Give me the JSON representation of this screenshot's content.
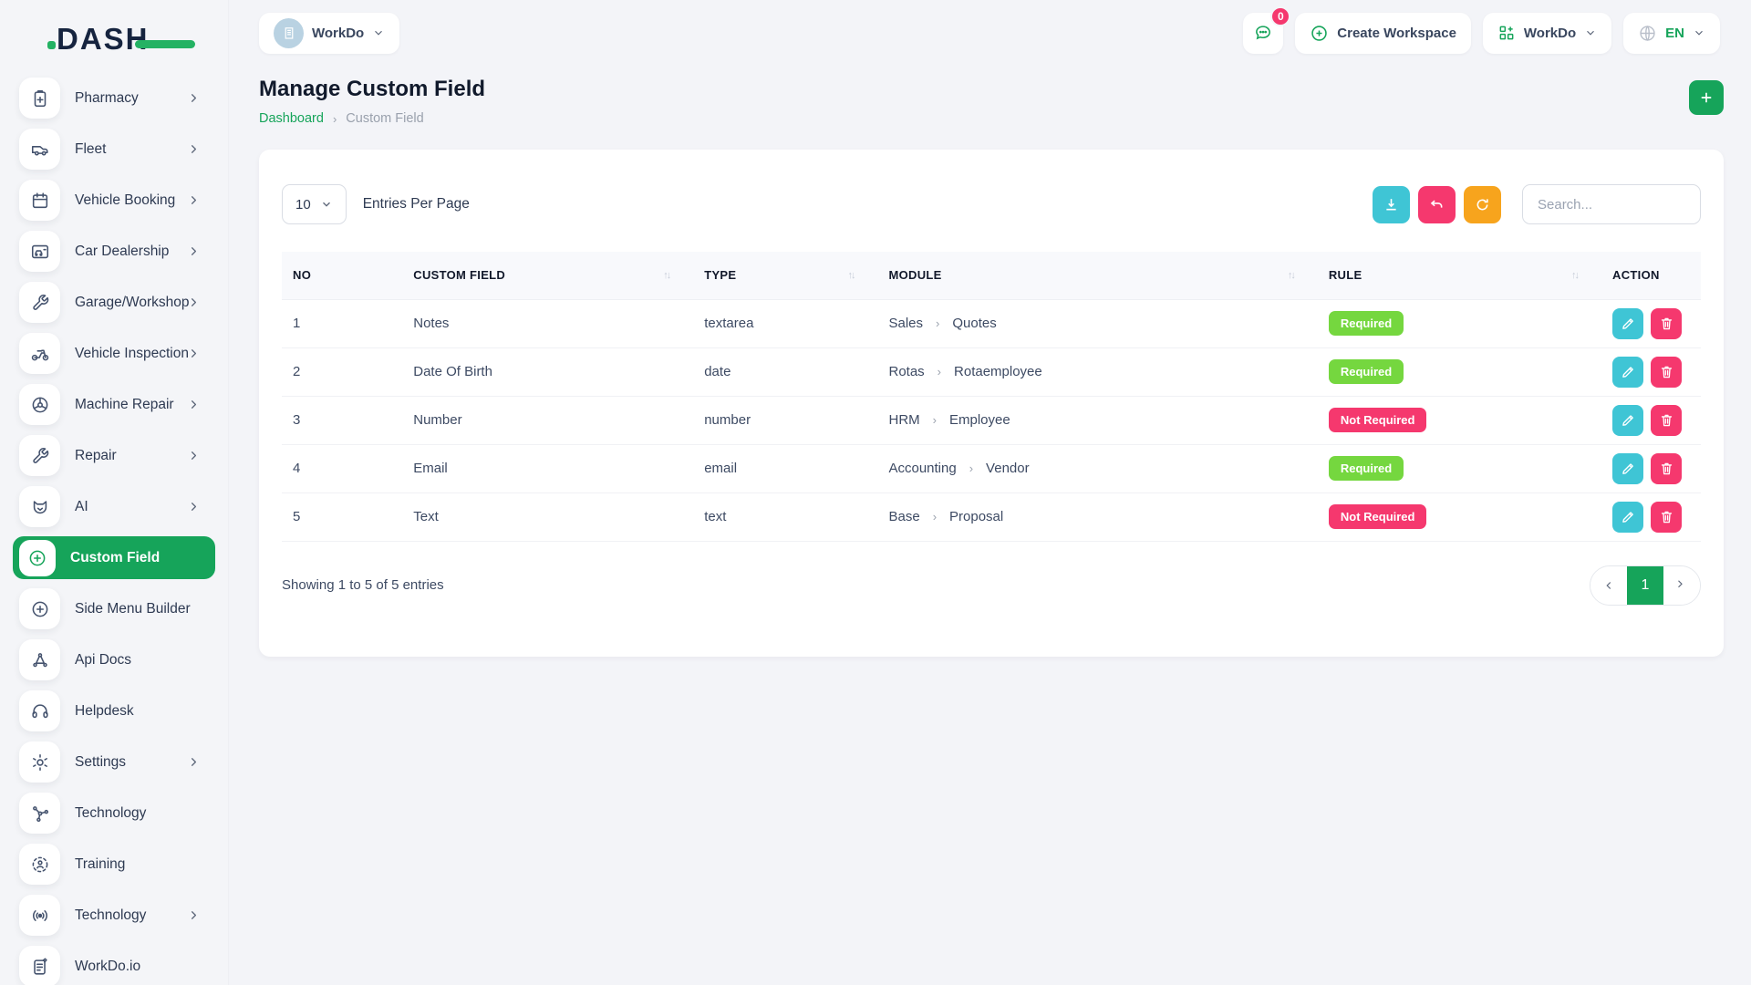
{
  "colors": {
    "primary_green": "#16a45a",
    "badge_green": "#75d73f",
    "pink": "#f5386e",
    "teal": "#3fc5d5",
    "orange": "#f7a41d",
    "navy": "#16243f",
    "avatar_blue": "#b9d2e2"
  },
  "brand": {
    "logo_text": "DASH"
  },
  "sidebar": {
    "items": [
      {
        "label": "Pharmacy",
        "icon": "clipboard-icon",
        "chevron": true,
        "active": false
      },
      {
        "label": "Fleet",
        "icon": "van-icon",
        "chevron": true,
        "active": false
      },
      {
        "label": "Vehicle Booking",
        "icon": "calendar-icon",
        "chevron": true,
        "active": false
      },
      {
        "label": "Car Dealership",
        "icon": "car-card-icon",
        "chevron": true,
        "active": false
      },
      {
        "label": "Garage/Workshop",
        "icon": "wrench-icon",
        "chevron": true,
        "active": false
      },
      {
        "label": "Vehicle Inspection",
        "icon": "motorcycle-icon",
        "chevron": true,
        "active": false
      },
      {
        "label": "Machine Repair",
        "icon": "machine-icon",
        "chevron": true,
        "active": false
      },
      {
        "label": "Repair",
        "icon": "wrench-icon",
        "chevron": true,
        "active": false
      },
      {
        "label": "AI",
        "icon": "ai-icon",
        "chevron": true,
        "active": false
      },
      {
        "label": "Custom Field",
        "icon": "plus-circle-icon",
        "chevron": false,
        "active": true
      },
      {
        "label": "Side Menu Builder",
        "icon": "plus-circle-icon",
        "chevron": false,
        "active": false
      },
      {
        "label": "Api Docs",
        "icon": "api-docs-icon",
        "chevron": false,
        "active": false
      },
      {
        "label": "Helpdesk",
        "icon": "headset-icon",
        "chevron": false,
        "active": false
      },
      {
        "label": "Settings",
        "icon": "gear-icon",
        "chevron": true,
        "active": false
      },
      {
        "label": "Technology",
        "icon": "share-nodes-icon",
        "chevron": false,
        "active": false
      },
      {
        "label": "Training",
        "icon": "training-icon",
        "chevron": false,
        "active": false
      },
      {
        "label": "Technology",
        "icon": "broadcast-icon",
        "chevron": true,
        "active": false
      },
      {
        "label": "WorkDo.io",
        "icon": "note-icon",
        "chevron": false,
        "active": false
      }
    ]
  },
  "header": {
    "workspace_label": "WorkDo",
    "messages_badge": "0",
    "create_workspace_label": "Create Workspace",
    "app_menu_label": "WorkDo",
    "language": "EN"
  },
  "page": {
    "title": "Manage Custom Field",
    "breadcrumb": {
      "home": "Dashboard",
      "current": "Custom Field"
    }
  },
  "toolbar": {
    "entries_value": "10",
    "entries_label": "Entries Per Page",
    "search_placeholder": "Search..."
  },
  "table": {
    "columns": [
      {
        "label": "NO",
        "sortable": false
      },
      {
        "label": "CUSTOM FIELD",
        "sortable": true
      },
      {
        "label": "TYPE",
        "sortable": true
      },
      {
        "label": "MODULE",
        "sortable": true
      },
      {
        "label": "RULE",
        "sortable": true
      },
      {
        "label": "ACTION",
        "sortable": false
      }
    ],
    "rows": [
      {
        "no": "1",
        "field": "Notes",
        "type": "textarea",
        "module_parent": "Sales",
        "module_child": "Quotes",
        "rule": "Required",
        "rule_style": "success"
      },
      {
        "no": "2",
        "field": "Date Of Birth",
        "type": "date",
        "module_parent": "Rotas",
        "module_child": "Rotaemployee",
        "rule": "Required",
        "rule_style": "success"
      },
      {
        "no": "3",
        "field": "Number",
        "type": "number",
        "module_parent": "HRM",
        "module_child": "Employee",
        "rule": "Not Required",
        "rule_style": "danger"
      },
      {
        "no": "4",
        "field": "Email",
        "type": "email",
        "module_parent": "Accounting",
        "module_child": "Vendor",
        "rule": "Required",
        "rule_style": "success"
      },
      {
        "no": "5",
        "field": "Text",
        "type": "text",
        "module_parent": "Base",
        "module_child": "Proposal",
        "rule": "Not Required",
        "rule_style": "danger"
      }
    ]
  },
  "footer": {
    "showing": "Showing 1 to 5 of 5 entries",
    "page": "1"
  }
}
